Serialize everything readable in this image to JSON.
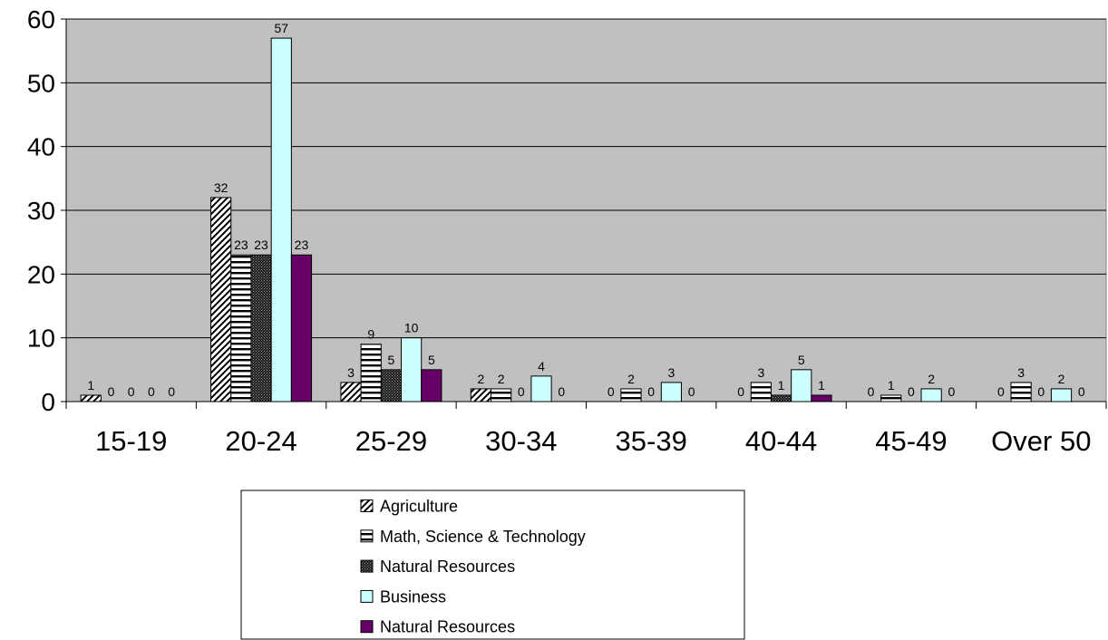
{
  "chart_data": {
    "type": "bar",
    "categories": [
      "15-19",
      "20-24",
      "25-29",
      "30-34",
      "35-39",
      "40-44",
      "45-49",
      "Over 50"
    ],
    "series": [
      {
        "name": "Agriculture",
        "values": [
          1,
          32,
          3,
          2,
          0,
          0,
          0,
          0
        ],
        "pattern": "diagonal",
        "color": "#000000"
      },
      {
        "name": "Math, Science & Technology",
        "values": [
          0,
          23,
          9,
          2,
          2,
          3,
          1,
          3
        ],
        "pattern": "horizontal",
        "color": "#000000"
      },
      {
        "name": "Natural Resources",
        "values": [
          0,
          23,
          5,
          0,
          0,
          1,
          0,
          0
        ],
        "pattern": "dots",
        "color": "#333333"
      },
      {
        "name": "Business",
        "values": [
          0,
          57,
          10,
          4,
          3,
          5,
          2,
          2
        ],
        "pattern": "solid",
        "color": "#ccffff"
      },
      {
        "name": "Natural Resources",
        "values": [
          0,
          23,
          5,
          0,
          0,
          1,
          0,
          0
        ],
        "pattern": "solid",
        "color": "#660066"
      }
    ],
    "ylim": [
      0,
      60
    ],
    "yticks": [
      0,
      10,
      20,
      30,
      40,
      50,
      60
    ],
    "title": "",
    "xlabel": "",
    "ylabel": "",
    "plot_background": "#c0c0c0",
    "grid": true,
    "legend_position": "bottom"
  }
}
